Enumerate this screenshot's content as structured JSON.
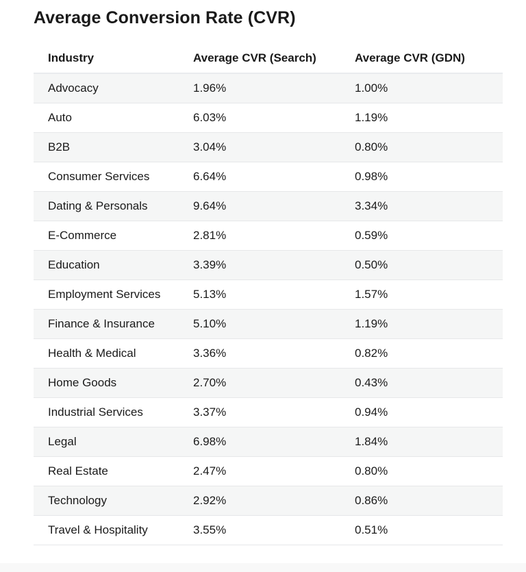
{
  "title": "Average Conversion Rate (CVR)",
  "columns": [
    "Industry",
    "Average CVR (Search)",
    "Average CVR (GDN)"
  ],
  "rows": [
    [
      "Advocacy",
      "1.96%",
      "1.00%"
    ],
    [
      "Auto",
      "6.03%",
      "1.19%"
    ],
    [
      "B2B",
      "3.04%",
      "0.80%"
    ],
    [
      "Consumer Services",
      "6.64%",
      "0.98%"
    ],
    [
      "Dating & Personals",
      "9.64%",
      "3.34%"
    ],
    [
      "E-Commerce",
      "2.81%",
      "0.59%"
    ],
    [
      "Education",
      "3.39%",
      "0.50%"
    ],
    [
      "Employment Services",
      "5.13%",
      "1.57%"
    ],
    [
      "Finance & Insurance",
      "5.10%",
      "1.19%"
    ],
    [
      "Health & Medical",
      "3.36%",
      "0.82%"
    ],
    [
      "Home Goods",
      "2.70%",
      "0.43%"
    ],
    [
      "Industrial Services",
      "3.37%",
      "0.94%"
    ],
    [
      "Legal",
      "6.98%",
      "1.84%"
    ],
    [
      "Real Estate",
      "2.47%",
      "0.80%"
    ],
    [
      "Technology",
      "2.92%",
      "0.86%"
    ],
    [
      "Travel & Hospitality",
      "3.55%",
      "0.51%"
    ]
  ]
}
